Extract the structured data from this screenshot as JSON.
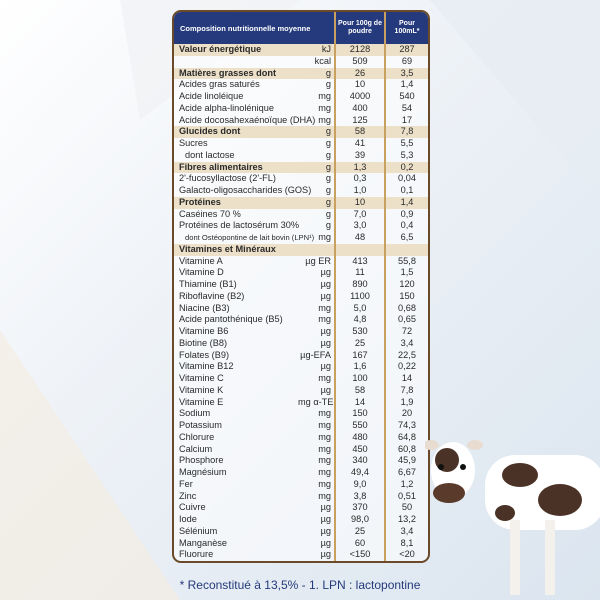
{
  "table": {
    "header": {
      "title": "Composition nutritionnelle moyenne",
      "col1": "Pour 100g de poudre",
      "col2": "Pour 100mL*"
    },
    "rows": [
      {
        "label": "Valeur énergétique",
        "unit": "kJ",
        "v1": "2128",
        "v2": "287",
        "section": true
      },
      {
        "label": "",
        "unit": "kcal",
        "v1": "509",
        "v2": "69"
      },
      {
        "label": "Matières grasses dont",
        "unit": "g",
        "v1": "26",
        "v2": "3,5",
        "section": true
      },
      {
        "label": "Acides gras saturés",
        "unit": "g",
        "v1": "10",
        "v2": "1,4"
      },
      {
        "label": "Acide linoléique",
        "unit": "mg",
        "v1": "4000",
        "v2": "540"
      },
      {
        "label": "Acide alpha-linolénique",
        "unit": "mg",
        "v1": "400",
        "v2": "54"
      },
      {
        "label": "Acide docosahexaénoïque (DHA)",
        "unit": "mg",
        "v1": "125",
        "v2": "17"
      },
      {
        "label": "Glucides dont",
        "unit": "g",
        "v1": "58",
        "v2": "7,8",
        "section": true
      },
      {
        "label": "Sucres",
        "unit": "g",
        "v1": "41",
        "v2": "5,5"
      },
      {
        "label": "dont lactose",
        "unit": "g",
        "v1": "39",
        "v2": "5,3",
        "indent": true
      },
      {
        "label": "Fibres alimentaires",
        "unit": "g",
        "v1": "1,3",
        "v2": "0,2",
        "section": true
      },
      {
        "label": "2'-fucosyllactose (2'-FL)",
        "unit": "g",
        "v1": "0,3",
        "v2": "0,04"
      },
      {
        "label": "Galacto-oligosaccharides (GOS)",
        "unit": "g",
        "v1": "1,0",
        "v2": "0,1"
      },
      {
        "label": "Protéines",
        "unit": "g",
        "v1": "10",
        "v2": "1,4",
        "section": true
      },
      {
        "label": "Caséines 70 %",
        "unit": "g",
        "v1": "7,0",
        "v2": "0,9"
      },
      {
        "label": "Protéines de lactosérum 30%",
        "unit": "g",
        "v1": "3,0",
        "v2": "0,4"
      },
      {
        "label": "dont Ostéopontine de lait bovin (LPN¹)",
        "unit": "mg",
        "v1": "48",
        "v2": "6,5",
        "indent": true,
        "small": true
      },
      {
        "label": "Vitamines et Minéraux",
        "unit": "",
        "v1": "",
        "v2": "",
        "section": true
      },
      {
        "label": "Vitamine A",
        "unit": "µg ER",
        "v1": "413",
        "v2": "55,8"
      },
      {
        "label": "Vitamine D",
        "unit": "µg",
        "v1": "11",
        "v2": "1,5"
      },
      {
        "label": "Thiamine (B1)",
        "unit": "µg",
        "v1": "890",
        "v2": "120"
      },
      {
        "label": "Riboflavine (B2)",
        "unit": "µg",
        "v1": "1100",
        "v2": "150"
      },
      {
        "label": "Niacine (B3)",
        "unit": "mg",
        "v1": "5,0",
        "v2": "0,68"
      },
      {
        "label": "Acide pantothénique (B5)",
        "unit": "mg",
        "v1": "4,8",
        "v2": "0,65"
      },
      {
        "label": "Vitamine B6",
        "unit": "µg",
        "v1": "530",
        "v2": "72"
      },
      {
        "label": "Biotine (B8)",
        "unit": "µg",
        "v1": "25",
        "v2": "3,4"
      },
      {
        "label": "Folates (B9)",
        "unit": "µg-EFA",
        "v1": "167",
        "v2": "22,5"
      },
      {
        "label": "Vitamine B12",
        "unit": "µg",
        "v1": "1,6",
        "v2": "0,22"
      },
      {
        "label": "Vitamine C",
        "unit": "mg",
        "v1": "100",
        "v2": "14"
      },
      {
        "label": "Vitamine K",
        "unit": "µg",
        "v1": "58",
        "v2": "7,8"
      },
      {
        "label": "Vitamine E",
        "unit": "mg α-TE",
        "v1": "14",
        "v2": "1,9"
      },
      {
        "label": "Sodium",
        "unit": "mg",
        "v1": "150",
        "v2": "20"
      },
      {
        "label": "Potassium",
        "unit": "mg",
        "v1": "550",
        "v2": "74,3"
      },
      {
        "label": "Chlorure",
        "unit": "mg",
        "v1": "480",
        "v2": "64,8"
      },
      {
        "label": "Calcium",
        "unit": "mg",
        "v1": "450",
        "v2": "60,8"
      },
      {
        "label": "Phosphore",
        "unit": "mg",
        "v1": "340",
        "v2": "45,9"
      },
      {
        "label": "Magnésium",
        "unit": "mg",
        "v1": "49,4",
        "v2": "6,67"
      },
      {
        "label": "Fer",
        "unit": "mg",
        "v1": "9,0",
        "v2": "1,2"
      },
      {
        "label": "Zinc",
        "unit": "mg",
        "v1": "3,8",
        "v2": "0,51"
      },
      {
        "label": "Cuivre",
        "unit": "µg",
        "v1": "370",
        "v2": "50"
      },
      {
        "label": "Iode",
        "unit": "µg",
        "v1": "98,0",
        "v2": "13,2"
      },
      {
        "label": "Sélénium",
        "unit": "µg",
        "v1": "25",
        "v2": "3,4"
      },
      {
        "label": "Manganèse",
        "unit": "µg",
        "v1": "60",
        "v2": "8,1"
      },
      {
        "label": "Fluorure",
        "unit": "µg",
        "v1": "<150",
        "v2": "<20"
      }
    ]
  },
  "footnote": "* Reconstitué à 13,5% - 1. LPN : lactopontine",
  "colors": {
    "header": "#253a7c",
    "section": "#ece0c8",
    "divider": "#c8a060",
    "footnote": "#243a7a"
  },
  "illustration": "cow-icon"
}
